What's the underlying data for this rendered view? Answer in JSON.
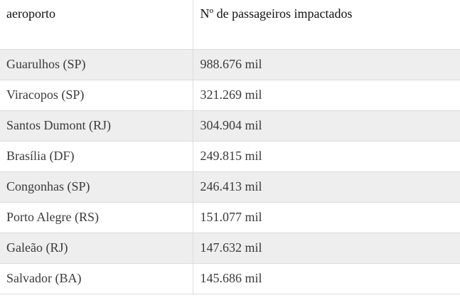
{
  "table": {
    "headers": [
      "aeroporto",
      "Nº de passageiros impactados"
    ],
    "rows": [
      [
        "Guarulhos (SP)",
        "988.676 mil"
      ],
      [
        "Viracopos (SP)",
        "321.269 mil"
      ],
      [
        "Santos Dumont (RJ)",
        "304.904 mil"
      ],
      [
        "Brasília (DF)",
        "249.815 mil"
      ],
      [
        "Congonhas (SP)",
        "246.413 mil"
      ],
      [
        "Porto Alegre (RS)",
        "151.077 mil"
      ],
      [
        "Galeão (RJ)",
        "147.632 mil"
      ],
      [
        "Salvador (BA)",
        "145.686 mil"
      ]
    ]
  },
  "colors": {
    "stripe": "#eeeeee",
    "border": "#dcdcdc",
    "text": "#3a3a3a"
  }
}
